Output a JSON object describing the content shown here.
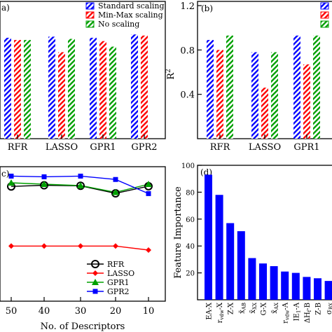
{
  "chart_data": [
    {
      "panel": "a",
      "panel_tag": "a)",
      "type": "bar",
      "categories": [
        "RFR",
        "LASSO",
        "GPR1",
        "GPR2"
      ],
      "series": [
        {
          "name": "Standard scaling",
          "values": [
            0.91,
            0.92,
            0.91,
            0.94
          ]
        },
        {
          "name": "Min-Max scaling",
          "values": [
            0.89,
            0.78,
            0.88,
            0.93
          ]
        },
        {
          "name": "No scaling",
          "values": [
            0.89,
            0.9,
            0.83,
            null
          ]
        }
      ],
      "ylim": [
        0,
        1.2
      ],
      "yticks": [],
      "legend": "top-right",
      "colors": [
        "#0000ff",
        "#ff0000",
        "#00a000"
      ]
    },
    {
      "panel": "b",
      "panel_tag": "(b)",
      "type": "bar",
      "categories": [
        "RFR",
        "LASSO",
        "GPR1"
      ],
      "series": [
        {
          "values": [
            0.89,
            0.78,
            0.93
          ]
        },
        {
          "values": [
            0.8,
            0.46,
            0.67
          ]
        },
        {
          "values": [
            0.93,
            0.78,
            0.93
          ]
        }
      ],
      "ylabel": "R",
      "ylabel_sup": "2",
      "ylim": [
        0,
        1.2
      ],
      "yticks": [
        "0.4",
        "0.8",
        "1.2"
      ],
      "ytick_values": [
        0.4,
        0.8,
        1.2
      ],
      "legend": "top-right",
      "colors": [
        "#0000ff",
        "#ff0000",
        "#00a000"
      ]
    },
    {
      "panel": "c",
      "panel_tag": "c)",
      "type": "line",
      "x": [
        50,
        40,
        30,
        20,
        10
      ],
      "xticks": [
        "50",
        "40",
        "30",
        "20",
        "10"
      ],
      "xlabel": "No. of Descriptors",
      "series": [
        {
          "name": "RFR",
          "values": [
            0.853,
            0.862,
            0.858,
            0.802,
            0.855
          ],
          "color": "#000000",
          "marker": "circle"
        },
        {
          "name": "LASSO",
          "values": [
            0.41,
            0.41,
            0.41,
            0.41,
            0.38
          ],
          "color": "#ff0000",
          "marker": "diamond"
        },
        {
          "name": "GPR1",
          "values": [
            0.88,
            0.87,
            0.86,
            0.81,
            0.87
          ],
          "color": "#00a000",
          "marker": "triangle"
        },
        {
          "name": "GPR2",
          "values": [
            0.93,
            0.925,
            0.93,
            0.905,
            0.8
          ],
          "color": "#0000ff",
          "marker": "square"
        }
      ],
      "ylim": [
        0.0,
        1.0
      ],
      "legend": "bottom-center"
    },
    {
      "panel": "d",
      "panel_tag": "(d)",
      "type": "bar",
      "categories": [
        "EA-X",
        "r_vdw-X",
        "Z-X",
        "x̄_AB",
        "x̄_XX",
        "G-X",
        "x̄_AX",
        "r_vdw-A",
        "IE_1-A",
        "ΔH_f-B",
        "Z-B",
        "σ_BX"
      ],
      "category_labels": [
        {
          "main": "EA-X",
          "sub": ""
        },
        {
          "main": "r",
          "sub": "vdw",
          "suffix": "-X"
        },
        {
          "main": "Z-X",
          "sub": ""
        },
        {
          "main": "x̄",
          "sub": "AB"
        },
        {
          "main": "x̄",
          "sub": "XX"
        },
        {
          "main": "G-X",
          "sub": ""
        },
        {
          "main": "x̄",
          "sub": "AX"
        },
        {
          "main": "r",
          "sub": "vdw",
          "suffix": "-A"
        },
        {
          "main": "IE",
          "sub": "1",
          "suffix": "-A"
        },
        {
          "main": "ΔH",
          "sub": "f",
          "suffix": "-B"
        },
        {
          "main": "Z-B",
          "sub": ""
        },
        {
          "main": "σ",
          "sub": "BX"
        }
      ],
      "values": [
        93,
        78,
        57,
        51,
        31,
        27,
        25,
        21,
        20,
        17,
        16,
        14
      ],
      "ylabel": "Feature Importance",
      "ylim": [
        0,
        100
      ],
      "yticks": [
        "20",
        "40",
        "60",
        "80",
        "100"
      ],
      "ytick_values": [
        20,
        40,
        60,
        80,
        100
      ],
      "color": "#0000ff"
    }
  ]
}
